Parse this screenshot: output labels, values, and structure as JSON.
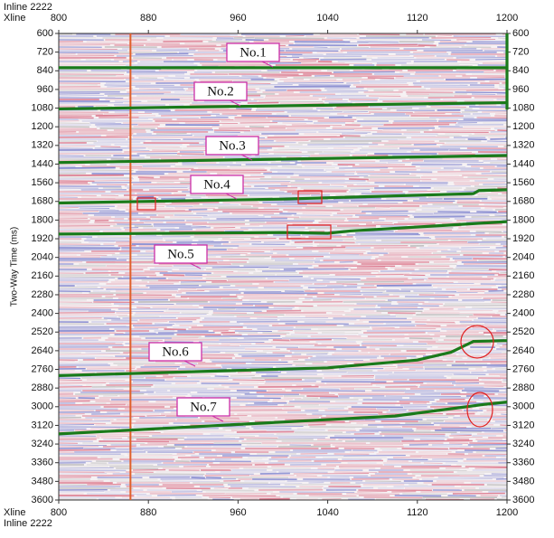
{
  "chart_data": {
    "type": "line",
    "inline_label": "Inline 2222",
    "xline_label": "Xline",
    "y_label": "Two-Way Time (ms)",
    "xlim": [
      800,
      1200
    ],
    "xticks": [
      800,
      880,
      960,
      1040,
      1120,
      1200
    ],
    "ylim": [
      600,
      3600
    ],
    "y_inverted": true,
    "yticks": [
      600,
      720,
      840,
      960,
      1080,
      1200,
      1320,
      1440,
      1560,
      1680,
      1800,
      1920,
      2040,
      2160,
      2280,
      2400,
      2520,
      2640,
      2760,
      2880,
      3000,
      3120,
      3240,
      3360,
      3480,
      3600
    ],
    "well_line": {
      "x": 864,
      "color": "#e0602a"
    },
    "series": [
      {
        "name": "No.1",
        "color": "#1a7a1a",
        "x": [
          800,
          1200,
          null,
          1200,
          1200
        ],
        "values": [
          820,
          820,
          null,
          600,
          1090
        ]
      },
      {
        "name": "No.2",
        "color": "#1a7a1a",
        "x": [
          800,
          1000,
          1200
        ],
        "values": [
          1085,
          1065,
          1045
        ]
      },
      {
        "name": "No.3",
        "color": "#1a7a1a",
        "x": [
          800,
          1000,
          1200
        ],
        "values": [
          1430,
          1408,
          1385
        ]
      },
      {
        "name": "No.4",
        "color": "#1a7a1a",
        "x": [
          800,
          1000,
          1170,
          1175,
          1200
        ],
        "values": [
          1690,
          1665,
          1630,
          1610,
          1605
        ]
      },
      {
        "name": "No.5",
        "color": "#1a7a1a",
        "x": [
          800,
          1000,
          1040,
          1060,
          1200
        ],
        "values": [
          1890,
          1880,
          1885,
          1870,
          1810
        ]
      },
      {
        "name": "No.6",
        "color": "#1a7a1a",
        "x": [
          800,
          1040,
          1120,
          1150,
          1170,
          1200
        ],
        "values": [
          2800,
          2750,
          2700,
          2650,
          2580,
          2575
        ]
      },
      {
        "name": "No.7",
        "color": "#1a7a1a",
        "x": [
          800,
          1100,
          1180,
          1200
        ],
        "values": [
          3175,
          3060,
          2985,
          2970
        ]
      }
    ]
  }
}
